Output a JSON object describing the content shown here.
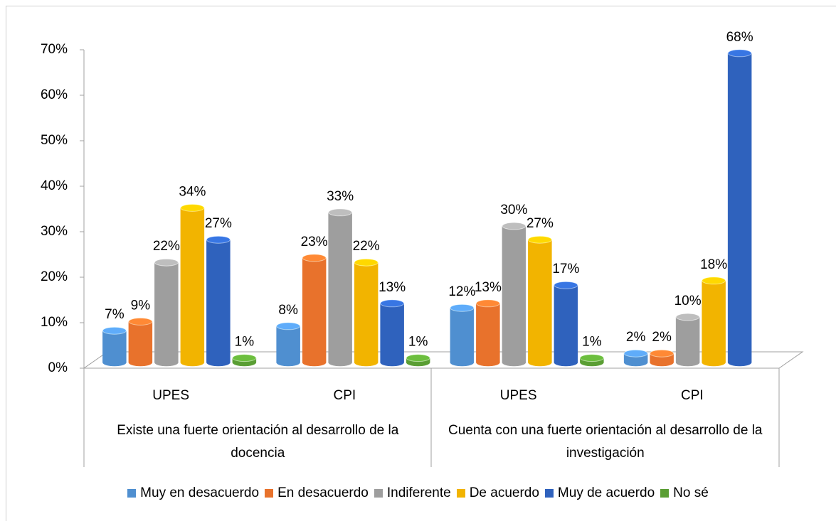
{
  "chart_data": {
    "type": "bar3d",
    "groups": [
      {
        "name": "Existe una fuerte orientación al desarrollo de la docencia",
        "categories": [
          "UPES",
          "CPI"
        ]
      },
      {
        "name": "Cuenta con una fuerte orientación al desarrollo de la investigación",
        "categories": [
          "UPES",
          "CPI"
        ]
      }
    ],
    "series": [
      {
        "name": "Muy en desacuerdo",
        "color": "#4f8fd0",
        "values": [
          7,
          8,
          12,
          2
        ],
        "value_labels": [
          "7%",
          "8%",
          "12%",
          "2%"
        ]
      },
      {
        "name": "En desacuerdo",
        "color": "#e8722c",
        "values": [
          9,
          23,
          13,
          2
        ],
        "value_labels": [
          "9%",
          "23%",
          "13%",
          "2%"
        ]
      },
      {
        "name": "Indiferente",
        "color": "#9e9e9e",
        "values": [
          22,
          33,
          30,
          10
        ],
        "value_labels": [
          "22%",
          "33%",
          "30%",
          "10%"
        ]
      },
      {
        "name": "De  acuerdo",
        "color": "#f2b400",
        "values": [
          34,
          22,
          27,
          18
        ],
        "value_labels": [
          "34%",
          "22%",
          "27%",
          "18%"
        ]
      },
      {
        "name": "Muy de acuerdo",
        "color": "#2f62bd",
        "values": [
          27,
          13,
          17,
          68
        ],
        "value_labels": [
          "27%",
          "13%",
          "17%",
          "68%"
        ]
      },
      {
        "name": "No sé",
        "color": "#5a9e34",
        "values": [
          1,
          1,
          1,
          null
        ],
        "value_labels": [
          "1%",
          "1%",
          "1%",
          null
        ]
      }
    ],
    "ylim": [
      0,
      70
    ],
    "yticks": [
      {
        "value": 0,
        "label": "0%"
      },
      {
        "value": 10,
        "label": "10%"
      },
      {
        "value": 20,
        "label": "20%"
      },
      {
        "value": 30,
        "label": "30%"
      },
      {
        "value": 40,
        "label": "40%"
      },
      {
        "value": 50,
        "label": "50%"
      },
      {
        "value": 60,
        "label": "60%"
      },
      {
        "value": 70,
        "label": "70%"
      }
    ],
    "legend": "bottom"
  }
}
